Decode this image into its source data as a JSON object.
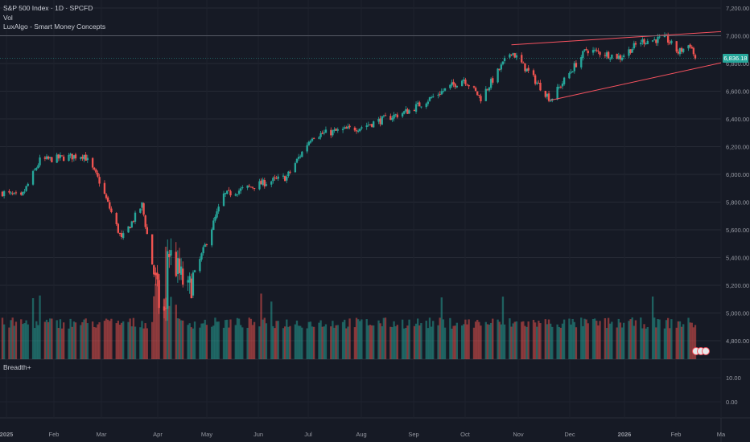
{
  "legend": {
    "symbol_line": "S&P 500 Index · 1D · SPCFD",
    "volume_label": "Vol",
    "indicator_label": "LuxAlgo - Smart Money Concepts"
  },
  "lower_pane": {
    "label": "Breadth+",
    "ticks": [
      "10.00",
      "0.00"
    ]
  },
  "last_price": "6,836.18",
  "colors": {
    "background": "#161a25",
    "up": "#26a69a",
    "down": "#ef5350",
    "trendline": "#f7525f",
    "grid": "#262a35"
  },
  "chart_data": {
    "type": "candlestick",
    "y_ticks": [
      "7,200.00",
      "7,000.00",
      "6,800.00",
      "6,600.00",
      "6,400.00",
      "6,200.00",
      "6,000.00",
      "5,800.00",
      "5,600.00",
      "5,400.00",
      "5,200.00",
      "5,000.00",
      "4,800.00"
    ],
    "ylim": [
      4600,
      7200
    ],
    "x_ticks": [
      "2025",
      "Feb",
      "Mar",
      "Apr",
      "May",
      "Jun",
      "Jul",
      "Aug",
      "Sep",
      "Oct",
      "Nov",
      "Dec",
      "2026",
      "Feb",
      "Ma"
    ],
    "anchors": [
      [
        "2025-01-02",
        5870
      ],
      [
        "2025-01-13",
        5830
      ],
      [
        "2025-01-24",
        6100
      ],
      [
        "2025-02-19",
        6140
      ],
      [
        "2025-02-28",
        5950
      ],
      [
        "2025-03-13",
        5530
      ],
      [
        "2025-03-25",
        5780
      ],
      [
        "2025-04-04",
        5070
      ],
      [
        "2025-04-08",
        4980
      ],
      [
        "2025-04-09",
        5460
      ],
      [
        "2025-04-21",
        5150
      ],
      [
        "2025-05-12",
        5850
      ],
      [
        "2025-06-02",
        5930
      ],
      [
        "2025-06-18",
        5980
      ],
      [
        "2025-07-03",
        6280
      ],
      [
        "2025-07-31",
        6340
      ],
      [
        "2025-08-29",
        6460
      ],
      [
        "2025-09-30",
        6690
      ],
      [
        "2025-10-10",
        6550
      ],
      [
        "2025-10-28",
        6890
      ],
      [
        "2025-11-20",
        6540
      ],
      [
        "2025-12-11",
        6900
      ],
      [
        "2025-12-31",
        6845
      ],
      [
        "2026-01-12",
        6960
      ],
      [
        "2026-01-27",
        6980
      ],
      [
        "2026-02-03",
        6880
      ],
      [
        "2026-02-10",
        6940
      ],
      [
        "2026-02-13",
        6836
      ]
    ],
    "last_close": 6836.18,
    "series": [
      "S&P 500 Index",
      "Vol"
    ]
  }
}
